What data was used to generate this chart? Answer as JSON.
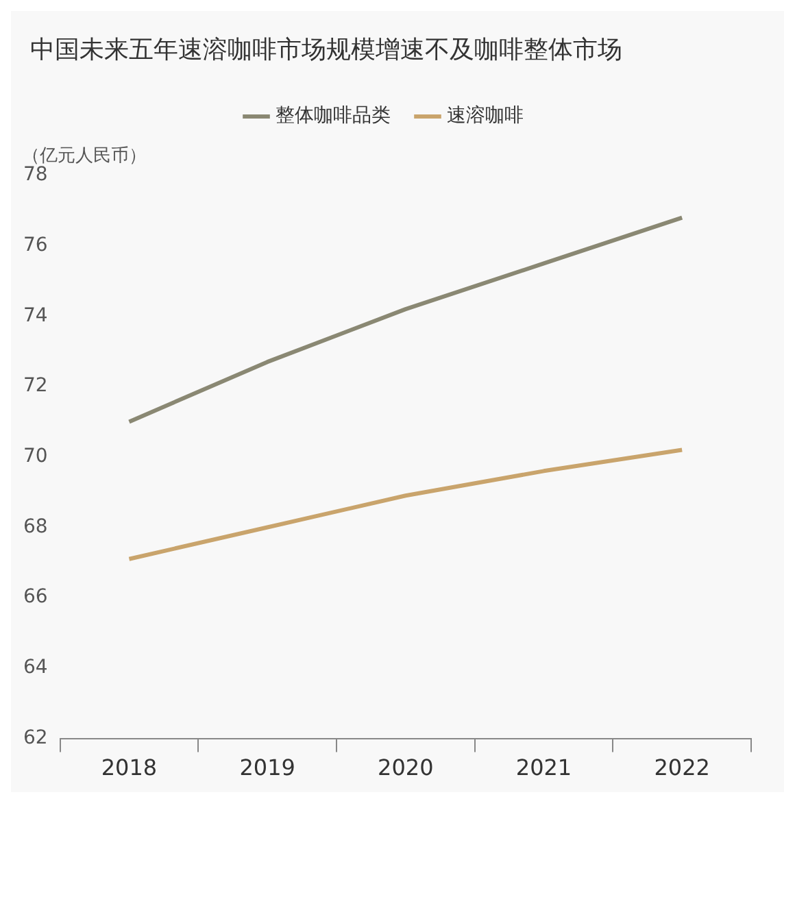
{
  "chart_data": {
    "type": "line",
    "title": "中国未来五年速溶咖啡市场规模增速不及咖啡整体市场",
    "ylabel": "（亿元人民币）",
    "categories": [
      "2018",
      "2019",
      "2020",
      "2021",
      "2022"
    ],
    "series": [
      {
        "name": "整体咖啡品类",
        "color": "#8a8873",
        "values": [
          71.0,
          72.7,
          74.2,
          75.5,
          76.8
        ]
      },
      {
        "name": "速溶咖啡",
        "color": "#c9a46c",
        "values": [
          67.1,
          68.0,
          68.9,
          69.6,
          70.2
        ]
      }
    ],
    "ylim": [
      62,
      78
    ],
    "yticks": [
      62,
      64,
      66,
      68,
      70,
      72,
      74,
      76,
      78
    ],
    "legend": "top",
    "marker": "none",
    "line_style": "solid"
  }
}
